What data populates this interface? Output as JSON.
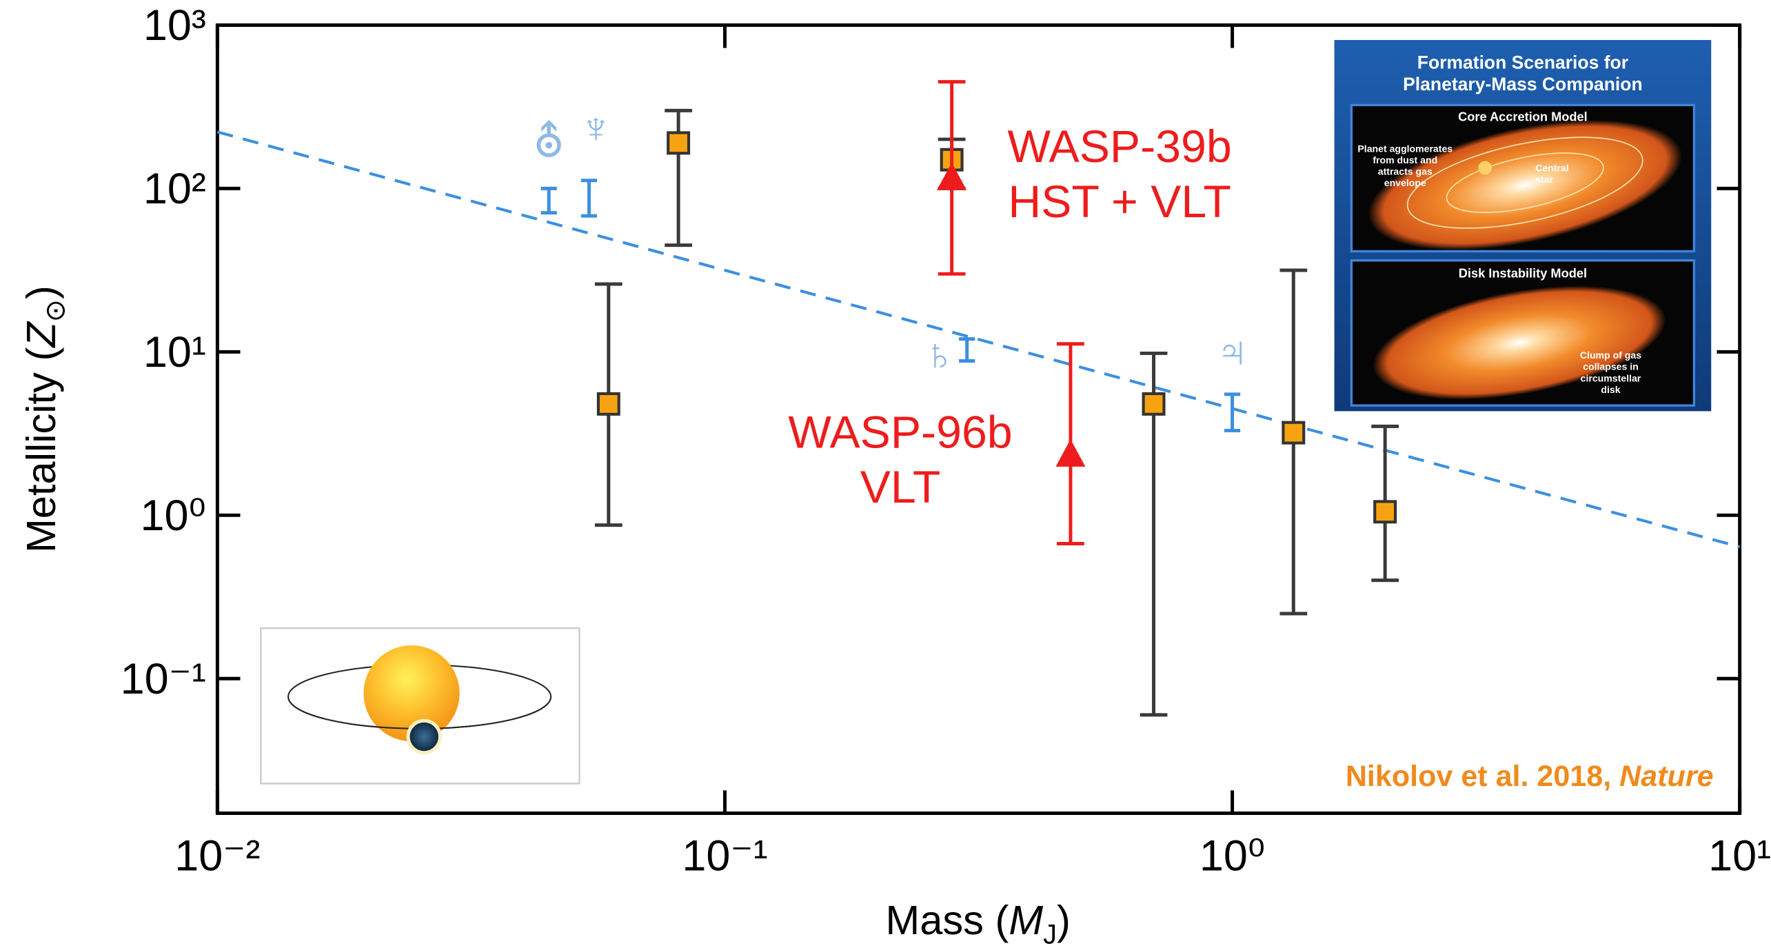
{
  "chart_data": {
    "type": "scatter",
    "log_x": true,
    "log_y": true,
    "xlim": [
      0.01,
      10
    ],
    "ylim": [
      0.015,
      1000
    ],
    "xticks": [
      {
        "value": 0.01,
        "label": "10⁻²"
      },
      {
        "value": 0.1,
        "label": "10⁻¹"
      },
      {
        "value": 1,
        "label": "10⁰"
      },
      {
        "value": 10,
        "label": "10¹"
      }
    ],
    "yticks": [
      {
        "value": 0.1,
        "label": "10⁻¹"
      },
      {
        "value": 1,
        "label": "10⁰"
      },
      {
        "value": 10,
        "label": "10¹"
      },
      {
        "value": 100,
        "label": "10²"
      },
      {
        "value": 1000,
        "label": "10³"
      }
    ],
    "xlabel": [
      "Mass (",
      "M",
      "J",
      ")"
    ],
    "ylabel": [
      "Metallicity (",
      "Z",
      "⊙",
      ")"
    ],
    "series": [
      {
        "marker": "square",
        "color": "#f7a311",
        "bar_color": "#3a3a3a",
        "x": [
          0.059,
          0.081,
          0.28,
          0.7,
          1.32,
          2.0
        ],
        "values": [
          4.8,
          190,
          150,
          4.8,
          3.2,
          1.05
        ],
        "low": [
          0.87,
          45,
          100,
          0.06,
          0.25,
          0.4
        ],
        "high": [
          26,
          300,
          200,
          9.8,
          31.6,
          3.5
        ]
      },
      {
        "marker": "triangle",
        "color": "#ee1c1c",
        "bar_color": "#ee1c1c",
        "x": [
          0.28,
          0.48
        ],
        "values": [
          115,
          2.33
        ],
        "low": [
          30,
          0.67
        ],
        "high": [
          450,
          11.2
        ]
      },
      {
        "marker": "none",
        "color": "#3d8fe0",
        "bar_color": "#3d8fe0",
        "label_color": "#8fb8e6",
        "x": [
          0.045,
          0.054,
          0.3,
          1.0
        ],
        "values": [
          85,
          88,
          9.8,
          4.3
        ],
        "low": [
          71,
          68,
          8.8,
          3.3
        ],
        "high": [
          100,
          112,
          12,
          5.5
        ],
        "labels": [
          "⛢",
          "♆",
          "♄",
          "♃"
        ]
      }
    ],
    "trend": {
      "x": [
        0.01,
        10
      ],
      "values": [
        222,
        0.64
      ],
      "color": "#3d8fe0",
      "dashed": true
    },
    "annotations": [
      {
        "lines": [
          "WASP-39b",
          "HST + VLT"
        ]
      },
      {
        "lines": [
          "WASP-96b",
          "VLT"
        ]
      }
    ],
    "credit": [
      "Nikolov et al. 2018, ",
      "Nature"
    ],
    "inset": {
      "title": [
        "Formation Scenarios for",
        "Planetary-Mass Companion"
      ],
      "panels": [
        {
          "title": "Core Accretion Model",
          "notes": [
            [
              "Planet agglomerates",
              "from dust and",
              "attracts gas",
              "envelope"
            ],
            [
              "Central",
              "star"
            ]
          ]
        },
        {
          "title": "Disk Instability Model",
          "notes": [
            [
              "Clump of gas",
              "collapses in",
              "circumstellar",
              "disk"
            ]
          ]
        }
      ]
    }
  }
}
